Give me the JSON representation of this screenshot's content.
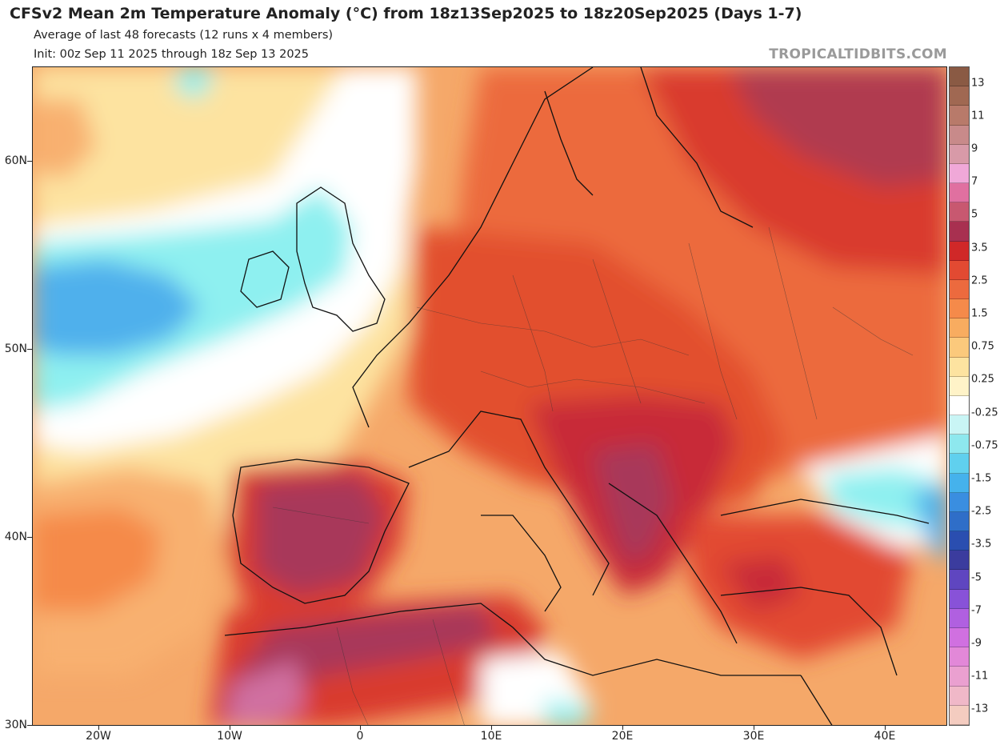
{
  "header": {
    "title": "CFSv2 Mean 2m Temperature Anomaly (°C) from 18z13Sep2025 to 18z20Sep2025 (Days 1-7)",
    "subtitle": "Average of last 48 forecasts (12 runs x 4 members)",
    "init": "Init: 00z Sep 11 2025 through 18z Sep 13 2025",
    "brand": "TROPICALTIDBITS.COM"
  },
  "axes": {
    "lat_labels": [
      "60N",
      "50N",
      "40N",
      "30N"
    ],
    "lon_labels": [
      "20W",
      "10W",
      "0",
      "10E",
      "20E",
      "30E",
      "40E"
    ]
  },
  "colorbar": {
    "labels": [
      "13",
      "11",
      "9",
      "7",
      "5",
      "3.5",
      "2.5",
      "1.5",
      "0.75",
      "0.25",
      "-0.25",
      "-0.75",
      "-1.5",
      "-2.5",
      "-3.5",
      "-5",
      "-7",
      "-9",
      "-11",
      "-13"
    ],
    "colors": [
      "#8a5a44",
      "#a06852",
      "#b87a6a",
      "#c88a8a",
      "#d89aa8",
      "#f0a8d8",
      "#e070a0",
      "#c85870",
      "#a83050",
      "#d02828",
      "#e24a32",
      "#ec6a3e",
      "#f58a4a",
      "#f8ac60",
      "#fbc97c",
      "#fde3a0",
      "#fff3c8",
      "#ffffff",
      "#c9f5f5",
      "#8ee8ee",
      "#60d0ee",
      "#45b2ec",
      "#3a8ee0",
      "#2f6ec8",
      "#2a4eb0",
      "#3b3c9e",
      "#5f46c0",
      "#8852d8",
      "#b060e0",
      "#d070e0",
      "#e288d8",
      "#eaa0d0",
      "#f0b8c8",
      "#f4ccc0"
    ]
  },
  "legend_colors": {
    "warm_extreme": "#a8385a",
    "warm_strong": "#d93a2e",
    "warm_mid": "#ee7040",
    "warm_light": "#f8b070",
    "neutral_pale": "#fde8a8",
    "neutral": "#ffffff",
    "cool_light": "#8ef0f0",
    "cool_mid": "#4fb0ec"
  }
}
